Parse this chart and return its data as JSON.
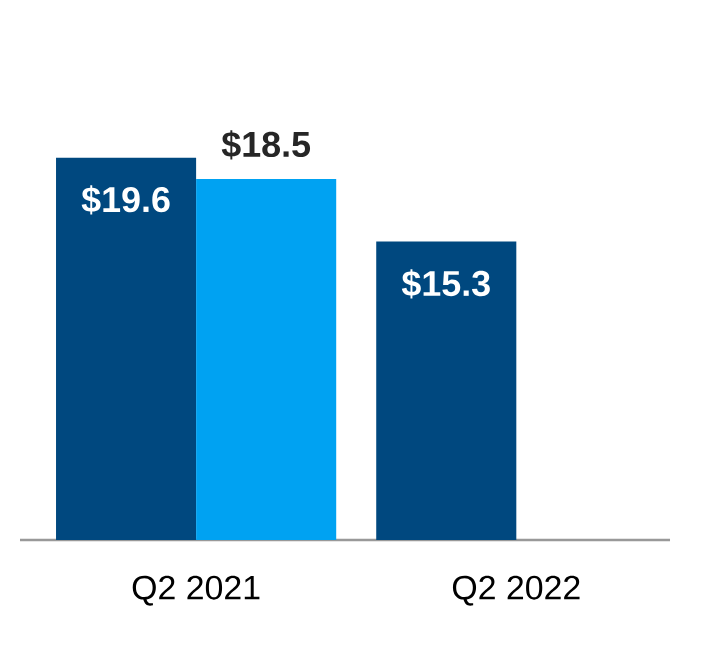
{
  "chart_data": {
    "type": "bar",
    "categories": [
      "Q2 2021",
      "Q2 2022"
    ],
    "series": [
      {
        "color": "#00487f",
        "values": [
          19.6,
          15.3
        ],
        "value_labels": [
          "$19.6",
          "$15.3"
        ]
      },
      {
        "color": "#00a2f2",
        "values": [
          18.5,
          null
        ],
        "value_labels": [
          "$18.5",
          null
        ]
      }
    ]
  }
}
